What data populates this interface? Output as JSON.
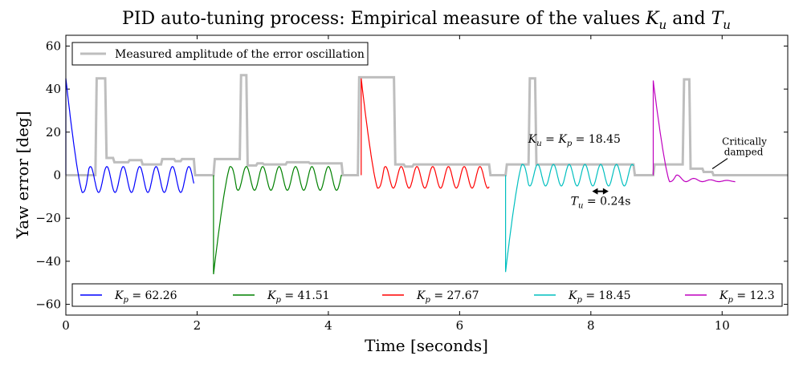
{
  "chart_data": {
    "type": "line",
    "title": "PID auto-tuning process: Empirical measure of the values K_u and T_u",
    "title_parts": {
      "prefix": "PID auto-tuning process: Empirical measure of the values ",
      "ku": "K",
      "ku_sub": "u",
      "and": " and ",
      "tu": "T",
      "tu_sub": "u"
    },
    "xlabel": "Time [seconds]",
    "ylabel": "Yaw error [deg]",
    "xlim": [
      0,
      11
    ],
    "ylim": [
      -65,
      65
    ],
    "xticks": [
      0,
      2,
      4,
      6,
      8,
      10
    ],
    "yticks": [
      -60,
      -40,
      -20,
      0,
      20,
      40,
      60
    ],
    "grid": false,
    "legend_top": {
      "placement": "upper-left",
      "label": "Measured amplitude of the error oscillation"
    },
    "legend_bottom": {
      "placement": "lower-center",
      "columns": 5
    },
    "series": [
      {
        "name": "K_p = 62.26",
        "color": "#0000ff",
        "t_start": 0.0,
        "t_end": 1.95,
        "y0": 45,
        "y_first_min": -8,
        "amplitude": 6,
        "period": 0.25,
        "damping": "sustained"
      },
      {
        "name": "K_p = 41.51",
        "color": "#008000",
        "t_start": 2.25,
        "t_end": 4.2,
        "y0": -46,
        "y_first_max": 4,
        "amplitude": 5.5,
        "period": 0.25,
        "damping": "sustained"
      },
      {
        "name": "K_p = 27.67",
        "color": "#ff0000",
        "t_start": 4.5,
        "t_end": 6.45,
        "y0": 45,
        "y_first_min": -6,
        "amplitude": 5,
        "period": 0.24,
        "damping": "sustained"
      },
      {
        "name": "K_p = 18.45",
        "color": "#00bfbf",
        "t_start": 6.7,
        "t_end": 8.65,
        "y0": -45,
        "y_first_max": 5,
        "amplitude": 5,
        "period": 0.24,
        "damping": "sustained"
      },
      {
        "name": "K_p = 12.3",
        "color": "#bf00bf",
        "t_start": 8.95,
        "t_end": 10.2,
        "y0": 44,
        "y_first_min": -3,
        "amplitude": 2,
        "period": 0.25,
        "damping": "decaying"
      }
    ],
    "amplitude_series": {
      "name": "Measured amplitude of the error oscillation",
      "color": "#bebebe",
      "points": [
        [
          0.0,
          0
        ],
        [
          0.45,
          0
        ],
        [
          0.47,
          45
        ],
        [
          0.6,
          45
        ],
        [
          0.62,
          8
        ],
        [
          0.72,
          8
        ],
        [
          0.74,
          6
        ],
        [
          0.95,
          6
        ],
        [
          0.97,
          7
        ],
        [
          1.15,
          7
        ],
        [
          1.17,
          5
        ],
        [
          1.45,
          5
        ],
        [
          1.47,
          7.5
        ],
        [
          1.65,
          7.5
        ],
        [
          1.67,
          6.5
        ],
        [
          1.75,
          6.5
        ],
        [
          1.77,
          7.5
        ],
        [
          1.95,
          7.5
        ],
        [
          1.97,
          0
        ],
        [
          2.25,
          0
        ],
        [
          2.27,
          7.5
        ],
        [
          2.65,
          7.5
        ],
        [
          2.67,
          46.5
        ],
        [
          2.75,
          46.5
        ],
        [
          2.77,
          4.5
        ],
        [
          2.9,
          4.5
        ],
        [
          2.92,
          5.5
        ],
        [
          3.0,
          5.5
        ],
        [
          3.02,
          5
        ],
        [
          3.35,
          5
        ],
        [
          3.37,
          6
        ],
        [
          3.7,
          6
        ],
        [
          3.72,
          5.5
        ],
        [
          4.2,
          5.5
        ],
        [
          4.22,
          0
        ],
        [
          4.45,
          0
        ],
        [
          4.47,
          45.5
        ],
        [
          5.0,
          45.5
        ],
        [
          5.02,
          5
        ],
        [
          5.15,
          5
        ],
        [
          5.17,
          4
        ],
        [
          5.28,
          4
        ],
        [
          5.3,
          5
        ],
        [
          6.45,
          5
        ],
        [
          6.47,
          0
        ],
        [
          6.7,
          0
        ],
        [
          6.72,
          5
        ],
        [
          7.05,
          5
        ],
        [
          7.07,
          45
        ],
        [
          7.15,
          45
        ],
        [
          7.17,
          5
        ],
        [
          8.65,
          5
        ],
        [
          8.67,
          0
        ],
        [
          8.95,
          0
        ],
        [
          8.97,
          5
        ],
        [
          9.4,
          5
        ],
        [
          9.42,
          44.5
        ],
        [
          9.5,
          44.5
        ],
        [
          9.52,
          3
        ],
        [
          9.7,
          3
        ],
        [
          9.72,
          1.5
        ],
        [
          9.85,
          1.5
        ],
        [
          9.87,
          0
        ],
        [
          11,
          0
        ]
      ]
    },
    "annotations": [
      {
        "id": "ku",
        "lhs_k": "K",
        "lhs_k_sub": "u",
        "eq1": " = ",
        "rhs_k": "K",
        "rhs_k_sub": "p",
        "eq2": " = 18.45",
        "x": 7.75,
        "y": 15
      },
      {
        "id": "tu",
        "lhs": "T",
        "lhs_sub": "u",
        "eq": " = 0.24s",
        "x": 8.15,
        "y": -12,
        "arrow_x0": 8.02,
        "arrow_x1": 8.27,
        "arrow_y": -7.5
      },
      {
        "id": "crit",
        "line1": "Critically",
        "line2": "damped",
        "text_x": 10.45,
        "text_y": 13,
        "arrow_tip_x": 9.9,
        "arrow_tip_y": 1.5
      }
    ]
  }
}
